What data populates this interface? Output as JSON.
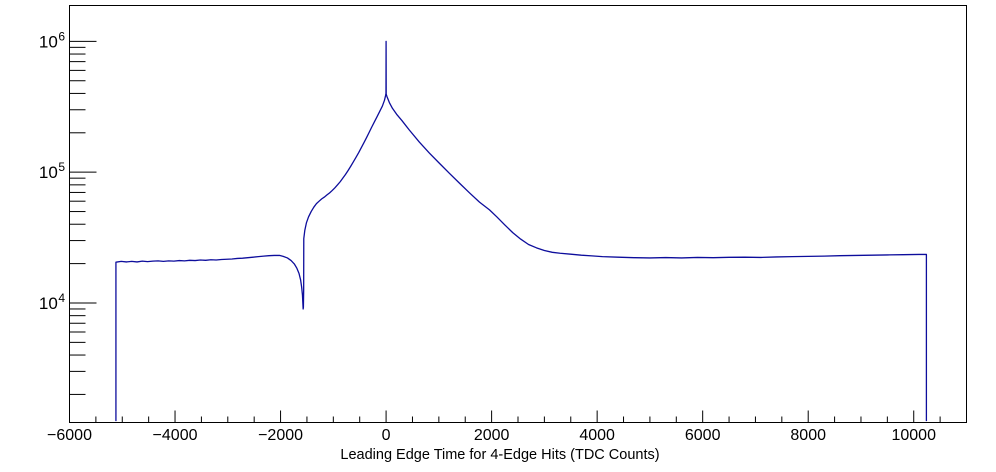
{
  "chart_data": {
    "type": "line",
    "subtype": "histogram-step-outline",
    "title": "",
    "xlabel": "Leading Edge Time for 4-Edge Hits (TDC Counts)",
    "ylabel": "",
    "x_min": -6000,
    "x_max": 11000,
    "y_min": 1220,
    "y_max": 1880000,
    "y_scale": "log",
    "grid": false,
    "legend": "none",
    "background_color": "#ffffff",
    "frame_color": "#000000",
    "line_color": "#0d0d9c",
    "x_tick_values": [
      -6000,
      -4000,
      -2000,
      0,
      2000,
      4000,
      6000,
      8000,
      10000
    ],
    "x_tick_labels": [
      "−6000",
      "−4000",
      "−2000",
      "0",
      "2000",
      "4000",
      "6000",
      "8000",
      "10000"
    ],
    "x_major_tick_step": 2000,
    "x_minor_tick_step": 500,
    "y_major_tick_exponents": [
      4,
      5,
      6
    ],
    "y_minor_tick_multiples": [
      2,
      3,
      4,
      5,
      6,
      7,
      8,
      9
    ],
    "data_x_start": -5120,
    "data_x_end": 10240,
    "peak_spike": {
      "x": 0,
      "value": 1000000
    },
    "dip": {
      "x": -1570,
      "value": 9000
    },
    "series": [
      {
        "name": "leading-edge-time-4edge-hits",
        "points": [
          [
            -5120,
            1250
          ],
          [
            -5120,
            20500
          ],
          [
            -5020,
            20800
          ],
          [
            -4920,
            20600
          ],
          [
            -4820,
            20800
          ],
          [
            -4720,
            20600
          ],
          [
            -4620,
            20900
          ],
          [
            -4520,
            20700
          ],
          [
            -4420,
            20900
          ],
          [
            -4320,
            21000
          ],
          [
            -4220,
            20800
          ],
          [
            -4120,
            21000
          ],
          [
            -4020,
            20900
          ],
          [
            -3920,
            21100
          ],
          [
            -3820,
            21000
          ],
          [
            -3720,
            21200
          ],
          [
            -3620,
            21100
          ],
          [
            -3520,
            21300
          ],
          [
            -3420,
            21200
          ],
          [
            -3320,
            21400
          ],
          [
            -3220,
            21300
          ],
          [
            -3120,
            21500
          ],
          [
            -3020,
            21600
          ],
          [
            -2920,
            21700
          ],
          [
            -2820,
            21900
          ],
          [
            -2720,
            22000
          ],
          [
            -2620,
            22200
          ],
          [
            -2520,
            22400
          ],
          [
            -2420,
            22600
          ],
          [
            -2320,
            22800
          ],
          [
            -2220,
            23000
          ],
          [
            -2120,
            23100
          ],
          [
            -2020,
            23100
          ],
          [
            -1950,
            22700
          ],
          [
            -1870,
            22100
          ],
          [
            -1800,
            21100
          ],
          [
            -1740,
            19900
          ],
          [
            -1690,
            18400
          ],
          [
            -1650,
            16800
          ],
          [
            -1620,
            15000
          ],
          [
            -1600,
            13200
          ],
          [
            -1585,
            11500
          ],
          [
            -1572,
            9000
          ],
          [
            -1567,
            9300
          ],
          [
            -1562,
            12500
          ],
          [
            -1560,
            31000
          ],
          [
            -1540,
            36000
          ],
          [
            -1510,
            41000
          ],
          [
            -1470,
            45500
          ],
          [
            -1420,
            50000
          ],
          [
            -1370,
            54000
          ],
          [
            -1320,
            57500
          ],
          [
            -1270,
            60000
          ],
          [
            -1220,
            62500
          ],
          [
            -1170,
            64500
          ],
          [
            -1120,
            67000
          ],
          [
            -1070,
            69500
          ],
          [
            -1020,
            72500
          ],
          [
            -970,
            76000
          ],
          [
            -920,
            80000
          ],
          [
            -870,
            84500
          ],
          [
            -820,
            90000
          ],
          [
            -770,
            96000
          ],
          [
            -720,
            103000
          ],
          [
            -670,
            111000
          ],
          [
            -620,
            120000
          ],
          [
            -570,
            130000
          ],
          [
            -520,
            141000
          ],
          [
            -470,
            154000
          ],
          [
            -420,
            168000
          ],
          [
            -370,
            184000
          ],
          [
            -320,
            202000
          ],
          [
            -270,
            222000
          ],
          [
            -220,
            243000
          ],
          [
            -170,
            266000
          ],
          [
            -120,
            292000
          ],
          [
            -70,
            320000
          ],
          [
            -30,
            355000
          ],
          [
            -10,
            385000
          ],
          [
            -2,
            400000
          ],
          [
            0,
            1000000
          ],
          [
            2,
            395000
          ],
          [
            15,
            380000
          ],
          [
            63,
            340000
          ],
          [
            120,
            308000
          ],
          [
            200,
            277000
          ],
          [
            300,
            248000
          ],
          [
            440,
            210000
          ],
          [
            630,
            170000
          ],
          [
            820,
            140000
          ],
          [
            1010,
            117000
          ],
          [
            1200,
            98000
          ],
          [
            1390,
            82500
          ],
          [
            1580,
            69500
          ],
          [
            1770,
            59000
          ],
          [
            1960,
            51500
          ],
          [
            2100,
            45500
          ],
          [
            2250,
            39500
          ],
          [
            2400,
            34500
          ],
          [
            2550,
            30800
          ],
          [
            2700,
            28000
          ],
          [
            2850,
            26400
          ],
          [
            3000,
            25200
          ],
          [
            3150,
            24400
          ],
          [
            3300,
            24000
          ],
          [
            3500,
            23600
          ],
          [
            3700,
            23200
          ],
          [
            3900,
            22900
          ],
          [
            4100,
            22600
          ],
          [
            4400,
            22400
          ],
          [
            4700,
            22200
          ],
          [
            5000,
            22100
          ],
          [
            5300,
            22250
          ],
          [
            5600,
            22100
          ],
          [
            5900,
            22300
          ],
          [
            6200,
            22200
          ],
          [
            6500,
            22350
          ],
          [
            6800,
            22400
          ],
          [
            7100,
            22300
          ],
          [
            7400,
            22500
          ],
          [
            7700,
            22600
          ],
          [
            8000,
            22700
          ],
          [
            8300,
            22800
          ],
          [
            8600,
            23000
          ],
          [
            8900,
            23100
          ],
          [
            9200,
            23200
          ],
          [
            9500,
            23300
          ],
          [
            9800,
            23400
          ],
          [
            10100,
            23500
          ],
          [
            10240,
            23500
          ],
          [
            10240,
            1250
          ]
        ]
      }
    ]
  }
}
